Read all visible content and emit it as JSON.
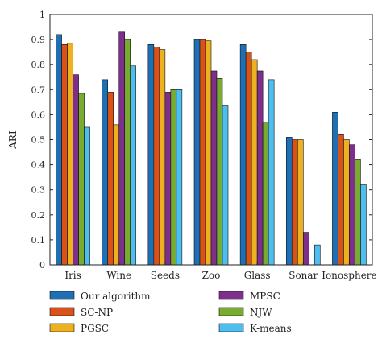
{
  "chart_data": {
    "type": "bar",
    "ylabel": "ARI",
    "xlabel": "",
    "ylim": [
      0,
      1
    ],
    "yticks": [
      0,
      0.1,
      0.2,
      0.3,
      0.4,
      0.5,
      0.6,
      0.7,
      0.8,
      0.9,
      1
    ],
    "grid": false,
    "legend_position": "bottom",
    "categories": [
      "Iris",
      "Wine",
      "Seeds",
      "Zoo",
      "Glass",
      "Sonar",
      "Ionosphere"
    ],
    "series": [
      {
        "name": "Our algorithm",
        "color": "#1f6fb5",
        "values": [
          0.92,
          0.74,
          0.88,
          0.9,
          0.88,
          0.51,
          0.61
        ]
      },
      {
        "name": "SC-NP",
        "color": "#d95319",
        "values": [
          0.88,
          0.69,
          0.87,
          0.9,
          0.85,
          0.5,
          0.52
        ]
      },
      {
        "name": "PGSC",
        "color": "#edb120",
        "values": [
          0.885,
          0.56,
          0.86,
          0.895,
          0.82,
          0.5,
          0.5
        ]
      },
      {
        "name": "MPSC",
        "color": "#7e2f8e",
        "values": [
          0.76,
          0.93,
          0.69,
          0.775,
          0.775,
          0.13,
          0.48
        ]
      },
      {
        "name": "NJW",
        "color": "#77ac30",
        "values": [
          0.685,
          0.9,
          0.7,
          0.745,
          0.57,
          0.0,
          0.42
        ]
      },
      {
        "name": "K-means",
        "color": "#4dbeee",
        "values": [
          0.55,
          0.795,
          0.7,
          0.635,
          0.74,
          0.08,
          0.32
        ]
      }
    ]
  }
}
